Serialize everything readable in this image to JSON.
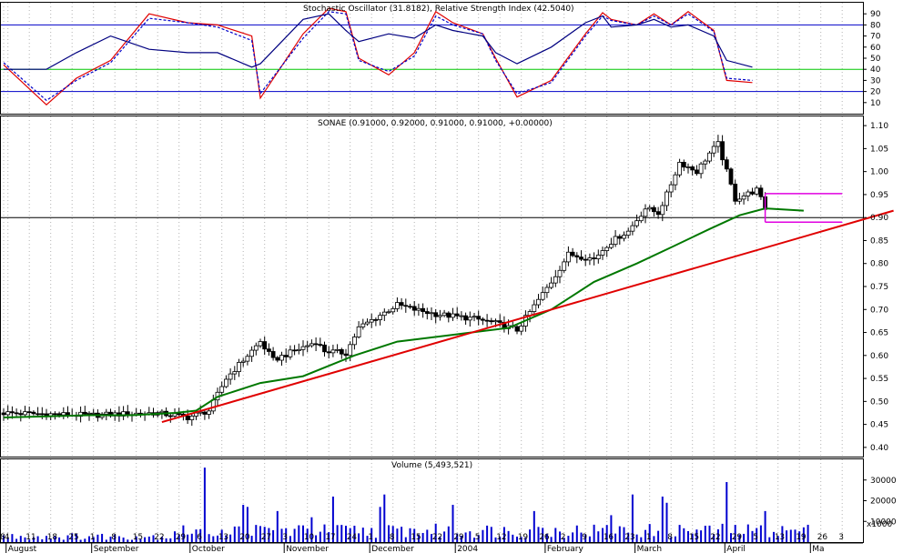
{
  "chart_data": {
    "type": "candlestick",
    "panels": [
      {
        "id": "oscillators",
        "title": "Stochastic Oscillator (31.8182), Relative Strength Index (42.5040)",
        "ylim": [
          0,
          100
        ],
        "ticks": [
          "10",
          "20",
          "30",
          "40",
          "50",
          "60",
          "70",
          "80",
          "90"
        ],
        "reference_lines": [
          {
            "value": 80,
            "color": "#0000c8"
          },
          {
            "value": 40,
            "color": "#00c800"
          },
          {
            "value": 20,
            "color": "#0000c8"
          }
        ],
        "series": [
          {
            "color": "#e00000",
            "style": "solid",
            "x": [
              0,
              10,
              17,
              25,
              34,
              43,
              50,
              58,
              60,
              70,
              76,
              80,
              83,
              90,
              96,
              101,
              105,
              112,
              115,
              120,
              128,
              136,
              140,
              142,
              148,
              152,
              156,
              160,
              166,
              169,
              175
            ],
            "values": [
              44,
              8,
              32,
              48,
              90,
              82,
              80,
              70,
              14,
              72,
              95,
              92,
              50,
              35,
              55,
              92,
              82,
              72,
              50,
              15,
              30,
              72,
              91,
              85,
              80,
              90,
              80,
              92,
              75,
              30,
              28
            ]
          },
          {
            "color": "#0000c8",
            "style": "dashed",
            "x": [
              0,
              10,
              17,
              25,
              34,
              43,
              50,
              58,
              60,
              70,
              76,
              80,
              83,
              90,
              96,
              101,
              105,
              112,
              115,
              120,
              128,
              136,
              140,
              142,
              148,
              152,
              156,
              160,
              166,
              169,
              175
            ],
            "values": [
              46,
              12,
              30,
              46,
              86,
              82,
              78,
              66,
              18,
              68,
              92,
              90,
              48,
              38,
              52,
              88,
              80,
              72,
              48,
              18,
              28,
              70,
              88,
              84,
              80,
              88,
              80,
              90,
              74,
              32,
              30
            ]
          },
          {
            "color": "#000080",
            "style": "solid",
            "x": [
              0,
              10,
              17,
              25,
              34,
              43,
              50,
              58,
              60,
              70,
              76,
              80,
              83,
              90,
              96,
              101,
              105,
              112,
              115,
              120,
              128,
              136,
              140,
              142,
              148,
              152,
              156,
              160,
              166,
              169,
              175
            ],
            "values": [
              40,
              40,
              55,
              70,
              58,
              55,
              55,
              42,
              45,
              85,
              90,
              75,
              65,
              72,
              68,
              80,
              75,
              70,
              55,
              45,
              60,
              82,
              88,
              78,
              80,
              85,
              78,
              80,
              70,
              48,
              42
            ]
          }
        ]
      },
      {
        "id": "price",
        "title": "SONAE (0.91000, 0.92000, 0.91000, 0.91000, +0.00000)",
        "ylim": [
          0.38,
          1.12
        ],
        "ticks": [
          "0.40",
          "0.45",
          "0.50",
          "0.55",
          "0.60",
          "0.65",
          "0.70",
          "0.75",
          "0.80",
          "0.85",
          "0.90",
          "0.95",
          "1.00",
          "1.05",
          "1.10"
        ],
        "close_anchors": {
          "x": [
            0,
            20,
            35,
            40,
            43,
            48,
            52,
            60,
            63,
            68,
            73,
            75,
            80,
            83,
            92,
            96,
            101,
            110,
            115,
            120,
            128,
            132,
            138,
            141,
            144,
            146,
            150,
            153,
            155,
            158,
            162,
            165,
            167,
            171,
            176,
            178
          ],
          "values": [
            0.475,
            0.47,
            0.475,
            0.47,
            0.465,
            0.48,
            0.55,
            0.63,
            0.59,
            0.61,
            0.63,
            0.61,
            0.605,
            0.66,
            0.71,
            0.7,
            0.69,
            0.68,
            0.67,
            0.655,
            0.76,
            0.82,
            0.81,
            0.84,
            0.86,
            0.87,
            0.92,
            0.91,
            0.95,
            1.02,
            1.0,
            1.04,
            1.06,
            0.94,
            0.96,
            0.92
          ]
        },
        "moving_average": {
          "color": "#007800",
          "x": [
            0,
            20,
            30,
            40,
            45,
            50,
            60,
            70,
            82,
            92,
            105,
            118,
            128,
            138,
            148,
            156,
            165,
            172,
            178,
            187
          ],
          "values": [
            0.465,
            0.47,
            0.47,
            0.475,
            0.48,
            0.51,
            0.54,
            0.555,
            0.6,
            0.63,
            0.645,
            0.66,
            0.7,
            0.76,
            0.8,
            0.835,
            0.875,
            0.905,
            0.92,
            0.915
          ]
        },
        "trendline": {
          "color": "#e00000",
          "x": [
            37,
            208
          ],
          "values": [
            0.455,
            0.915
          ]
        },
        "support_line": {
          "value": 0.9,
          "color": "#000000"
        },
        "range_box": {
          "color": "#e000e0",
          "x": [
            178,
            196
          ],
          "top": 0.952,
          "bottom": 0.89
        }
      },
      {
        "id": "volume",
        "title": "Volume (5,493,521)",
        "ylim": [
          0,
          40000
        ],
        "ticks": [
          "10000",
          "20000",
          "30000"
        ],
        "unit_label": "x1000",
        "bar_color": "#0000d0",
        "spikes": {
          "x": [
            47,
            56,
            57,
            64,
            72,
            77,
            88,
            89,
            105,
            124,
            142,
            147,
            154,
            155,
            169,
            178
          ],
          "values": [
            36000,
            18000,
            17000,
            15000,
            12000,
            22000,
            17000,
            23000,
            18000,
            15000,
            13000,
            23000,
            22000,
            19000,
            29000,
            15000
          ]
        }
      }
    ],
    "x_axis": {
      "n_bars": 190,
      "day_labels": [
        {
          "i": 0,
          "text": "8"
        },
        {
          "i": 1,
          "text": "4"
        },
        {
          "i": 6,
          "text": "11"
        },
        {
          "i": 11,
          "text": "18"
        },
        {
          "i": 16,
          "text": "25"
        },
        {
          "i": 21,
          "text": "1"
        },
        {
          "i": 26,
          "text": "8"
        },
        {
          "i": 31,
          "text": "15"
        },
        {
          "i": 36,
          "text": "22"
        },
        {
          "i": 41,
          "text": "29"
        },
        {
          "i": 46,
          "text": "6"
        },
        {
          "i": 51,
          "text": "13"
        },
        {
          "i": 56,
          "text": "20"
        },
        {
          "i": 61,
          "text": "27"
        },
        {
          "i": 66,
          "text": "3"
        },
        {
          "i": 71,
          "text": "10"
        },
        {
          "i": 76,
          "text": "17"
        },
        {
          "i": 81,
          "text": "24"
        },
        {
          "i": 86,
          "text": "1"
        },
        {
          "i": 91,
          "text": "8"
        },
        {
          "i": 96,
          "text": "15"
        },
        {
          "i": 101,
          "text": "22"
        },
        {
          "i": 106,
          "text": "29"
        },
        {
          "i": 111,
          "text": "5"
        },
        {
          "i": 116,
          "text": "12"
        },
        {
          "i": 121,
          "text": "19"
        },
        {
          "i": 126,
          "text": "26"
        },
        {
          "i": 131,
          "text": "2"
        },
        {
          "i": 136,
          "text": "9"
        },
        {
          "i": 141,
          "text": "16"
        },
        {
          "i": 146,
          "text": "23"
        },
        {
          "i": 151,
          "text": "1"
        },
        {
          "i": 156,
          "text": "8"
        },
        {
          "i": 161,
          "text": "15"
        },
        {
          "i": 166,
          "text": "22"
        },
        {
          "i": 171,
          "text": "29"
        },
        {
          "i": 176,
          "text": "5"
        },
        {
          "i": 181,
          "text": "13"
        },
        {
          "i": 186,
          "text": "19"
        },
        {
          "i": 191,
          "text": "26"
        },
        {
          "i": 196,
          "text": "3"
        }
      ],
      "month_labels": [
        {
          "i": 1,
          "text": "August"
        },
        {
          "i": 21,
          "text": "September"
        },
        {
          "i": 44,
          "text": "October"
        },
        {
          "i": 66,
          "text": "November"
        },
        {
          "i": 86,
          "text": "December"
        },
        {
          "i": 106,
          "text": "2004"
        },
        {
          "i": 127,
          "text": "February"
        },
        {
          "i": 148,
          "text": "March"
        },
        {
          "i": 169,
          "text": "April"
        },
        {
          "i": 189,
          "text": "Ma"
        }
      ]
    }
  }
}
